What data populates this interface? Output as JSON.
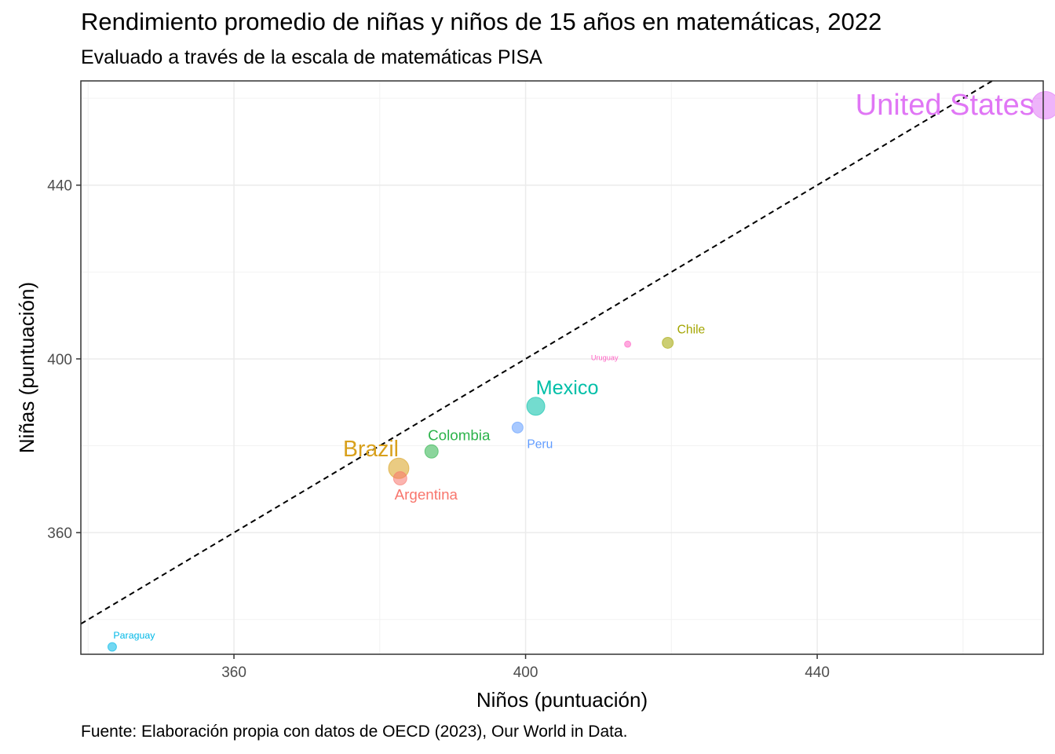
{
  "chart_data": {
    "type": "scatter",
    "title": "Rendimiento promedio de niñas y niños de 15 años en matemáticas, 2022",
    "subtitle": "Evaluado a través de la escala de matemáticas PISA",
    "caption": "Fuente: Elaboración propia con datos de OECD (2023), Our World in Data.",
    "xlabel": "Niños (puntuación)",
    "ylabel": "Niñas (puntuación)",
    "xlim": [
      339,
      471
    ],
    "ylim": [
      332,
      464
    ],
    "x_ticks": [
      360,
      400,
      440
    ],
    "y_ticks": [
      360,
      400,
      440
    ],
    "grid": true,
    "reference_line": "y = x",
    "points": [
      {
        "label": "United States",
        "x": 471.3,
        "y": 458.4,
        "color": "#E076F5",
        "size_rank": 10
      },
      {
        "label": "Chile",
        "x": 419.5,
        "y": 403.7,
        "color": "#A3A500",
        "size_rank": 3
      },
      {
        "label": "Uruguay",
        "x": 414.0,
        "y": 403.4,
        "color": "#FF61C3",
        "size_rank": 1
      },
      {
        "label": "Mexico",
        "x": 401.4,
        "y": 389.1,
        "color": "#00BFA8",
        "size_rank": 6
      },
      {
        "label": "Peru",
        "x": 398.9,
        "y": 384.2,
        "color": "#619CFF",
        "size_rank": 3
      },
      {
        "label": "Colombia",
        "x": 387.1,
        "y": 378.7,
        "color": "#2BB34A",
        "size_rank": 4
      },
      {
        "label": "Brazil",
        "x": 382.6,
        "y": 374.8,
        "color": "#D8A01C",
        "size_rank": 7
      },
      {
        "label": "Argentina",
        "x": 382.8,
        "y": 372.5,
        "color": "#F8766D",
        "size_rank": 4
      },
      {
        "label": "Paraguay",
        "x": 343.3,
        "y": 333.7,
        "color": "#00B8E7",
        "size_rank": 2
      }
    ]
  }
}
